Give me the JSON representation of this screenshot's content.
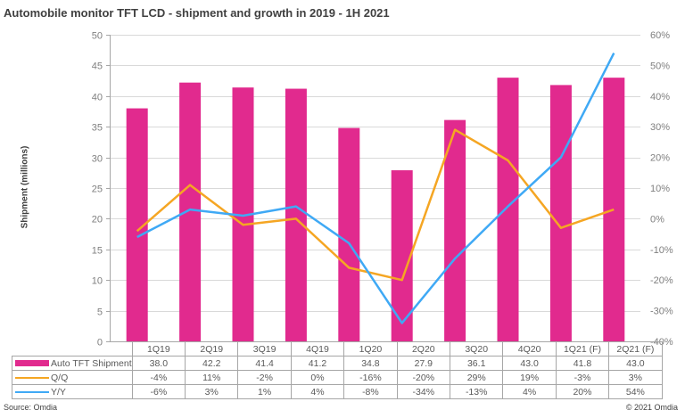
{
  "chart_data": {
    "type": "bar",
    "title": "Automobile monitor TFT LCD - shipment and growth in 2019 - 1H 2021",
    "ylabel": "Shipment (millions)",
    "ylabel_right": "",
    "xlabel": "",
    "categories": [
      "1Q19",
      "2Q19",
      "3Q19",
      "4Q19",
      "1Q20",
      "2Q20",
      "3Q20",
      "4Q20",
      "1Q21 (F)",
      "2Q21 (F)"
    ],
    "ylim": [
      0,
      50
    ],
    "y_ticks": [
      "0",
      "5",
      "10",
      "15",
      "20",
      "25",
      "30",
      "35",
      "40",
      "45",
      "50"
    ],
    "y2lim": [
      -40,
      60
    ],
    "y2_ticks": [
      "-40%",
      "-30%",
      "-20%",
      "-10%",
      "0%",
      "10%",
      "20%",
      "30%",
      "40%",
      "50%",
      "60%"
    ],
    "grid": true,
    "legend": "data-table-bottom",
    "series": [
      {
        "name": "Auto TFT Shipment",
        "type": "bar",
        "axis": "left",
        "color": "#e12a8e",
        "values": [
          38.0,
          42.2,
          41.4,
          41.2,
          34.8,
          27.9,
          36.1,
          43.0,
          41.8,
          43.0
        ],
        "labels": [
          "38.0",
          "42.2",
          "41.4",
          "41.2",
          "34.8",
          "27.9",
          "36.1",
          "43.0",
          "41.8",
          "43.0"
        ]
      },
      {
        "name": "Q/Q",
        "type": "line",
        "axis": "right",
        "color": "#f5a623",
        "values": [
          -4,
          11,
          -2,
          0,
          -16,
          -20,
          29,
          19,
          -3,
          3
        ],
        "labels": [
          "-4%",
          "11%",
          "-2%",
          "0%",
          "-16%",
          "-20%",
          "29%",
          "19%",
          "-3%",
          "3%"
        ]
      },
      {
        "name": "Y/Y",
        "type": "line",
        "axis": "right",
        "color": "#3fa9f5",
        "values": [
          -6,
          3,
          1,
          4,
          -8,
          -34,
          -13,
          4,
          20,
          54
        ],
        "labels": [
          "-6%",
          "3%",
          "1%",
          "4%",
          "-8%",
          "-34%",
          "-13%",
          "4%",
          "20%",
          "54%"
        ]
      }
    ]
  },
  "footer": {
    "source": "Source: Omdia",
    "copyright": "© 2021 Omdia"
  }
}
